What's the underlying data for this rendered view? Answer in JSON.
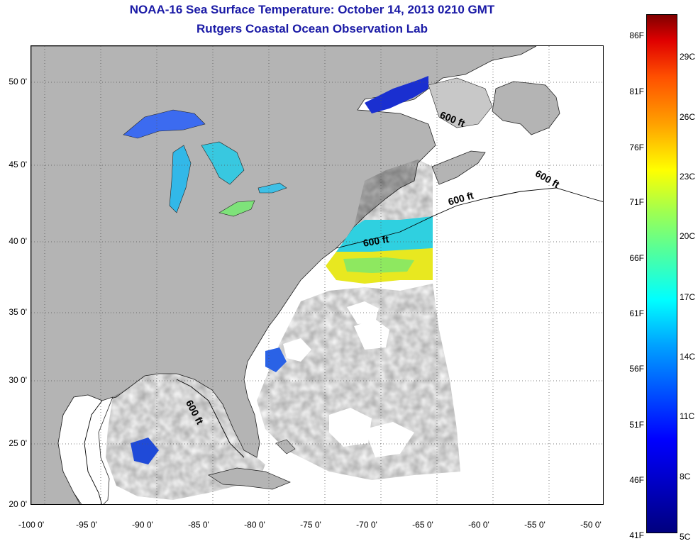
{
  "header": {
    "title": "NOAA-16 Sea Surface Temperature:  October 14, 2013 0210 GMT",
    "subtitle": "Rutgers Coastal Ocean Observation Lab"
  },
  "map": {
    "lat_ticks": [
      "50 0'",
      "45 0'",
      "40 0'",
      "35 0'",
      "30 0'",
      "25 0'",
      "20 0'"
    ],
    "lon_ticks": [
      "-100 0'",
      "-95 0'",
      "-90 0'",
      "-85 0'",
      "-80 0'",
      "-75 0'",
      "-70 0'",
      "-65 0'",
      "-60 0'",
      "-55 0'",
      "-50 0'"
    ],
    "lat_range": [
      20,
      52.5
    ],
    "lon_range": [
      -100,
      -50
    ],
    "land_color": "#b4b4b4",
    "no_data_color": "#ffffff",
    "gridlines": "dotted",
    "contour_labels": [
      "600 ft",
      "600 ft",
      "600 ft",
      "600 ft",
      "600 ft"
    ]
  },
  "colorbar": {
    "fahrenheit_labels": [
      "86F",
      "81F",
      "76F",
      "71F",
      "66F",
      "61F",
      "56F",
      "51F",
      "46F",
      "41F"
    ],
    "celsius_labels": [
      "29C",
      "26C",
      "23C",
      "20C",
      "17C",
      "14C",
      "11C",
      "8C",
      "5C"
    ],
    "range_celsius": [
      5,
      31
    ],
    "colormap": "jet"
  }
}
